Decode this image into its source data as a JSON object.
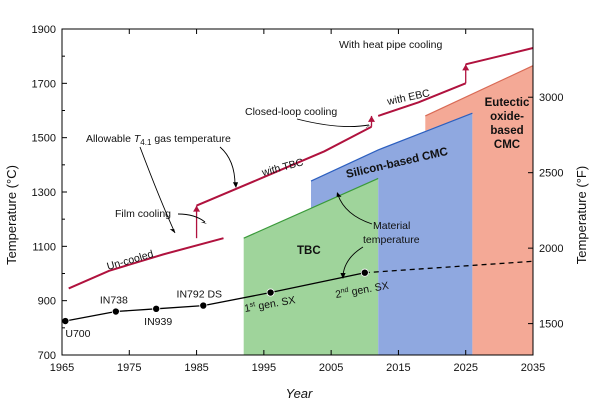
{
  "chart_data": {
    "type": "line",
    "xlabel": "Year",
    "ylabel_left": "Temperature (°C)",
    "ylabel_right": "Temperature (°F)",
    "xlim": [
      1965,
      2035
    ],
    "ylim": [
      700,
      1900
    ],
    "x_ticks": [
      1965,
      1975,
      1985,
      1995,
      2005,
      2015,
      2025,
      2035
    ],
    "y_ticks": [
      700,
      900,
      1100,
      1300,
      1500,
      1700,
      1900
    ],
    "y_right_ticks_F": [
      1500,
      2000,
      2500,
      3000
    ],
    "alloys": [
      {
        "label": "U700",
        "x": 1965.5,
        "y": 825
      },
      {
        "label": "IN738",
        "x": 1973,
        "y": 860
      },
      {
        "label": "IN939",
        "x": 1979,
        "y": 870
      },
      {
        "label": "IN792 DS",
        "x": 1986,
        "y": 882
      },
      {
        "label": "1st gen. SX",
        "x": 1996,
        "y": 930
      },
      {
        "label": "2nd gen. SX",
        "x": 2010,
        "y": 1003
      }
    ],
    "alloy_trend_extension": [
      [
        2010,
        1003
      ],
      [
        2035,
        1045
      ]
    ],
    "gas_temperature_segments": [
      {
        "label": "Un-cooled",
        "points": [
          [
            1966,
            945
          ],
          [
            1972,
            1010
          ],
          [
            1980,
            1070
          ],
          [
            1989,
            1130
          ]
        ]
      },
      {
        "label": "with TBC",
        "points": [
          [
            1985,
            1250
          ],
          [
            1995,
            1355
          ],
          [
            2004,
            1450
          ],
          [
            2011,
            1540
          ]
        ]
      },
      {
        "label": "with EBC",
        "points": [
          [
            2012,
            1580
          ],
          [
            2018,
            1630
          ],
          [
            2025,
            1700
          ]
        ]
      },
      {
        "label": "With heat pipe cooling",
        "points": [
          [
            2025,
            1770
          ],
          [
            2030,
            1800
          ],
          [
            2035,
            1830
          ]
        ]
      }
    ],
    "gas_temperature_jumps": [
      {
        "x": 1985,
        "from": 1130,
        "to": 1250
      },
      {
        "x": 2011,
        "from": 1540,
        "to": 1580
      },
      {
        "x": 2025,
        "from": 1700,
        "to": 1770
      }
    ],
    "material_regions": [
      {
        "label": "TBC",
        "color": "#9fd49b",
        "points": [
          [
            1992,
            1130
          ],
          [
            2012,
            1350
          ],
          [
            2012,
            700
          ],
          [
            1992,
            700
          ]
        ]
      },
      {
        "label": "Silicon-based CMC",
        "color": "#8fa8e0",
        "points": [
          [
            2002,
            1340
          ],
          [
            2012,
            1455
          ],
          [
            2026,
            1590
          ],
          [
            2026,
            700
          ],
          [
            2012,
            700
          ],
          [
            2012,
            1350
          ],
          [
            2002,
            1240
          ]
        ]
      },
      {
        "label": "Eutectic oxide-based CMC",
        "color": "#f4a996",
        "points": [
          [
            2019,
            1580
          ],
          [
            2035,
            1765
          ],
          [
            2035,
            700
          ],
          [
            2026,
            700
          ],
          [
            2026,
            1590
          ],
          [
            2019,
            1525
          ]
        ]
      }
    ],
    "annotations": {
      "allowable_label_pre": "Allowable ",
      "allowable_label_var": "T",
      "allowable_label_sub": "4.1",
      "allowable_label_post": " gas temperature",
      "film_cooling": "Film cooling",
      "closed_loop_cooling": "Closed-loop cooling",
      "with_tbc": "with TBC",
      "with_ebc": "with EBC",
      "with_heat_pipe": "With heat pipe cooling",
      "un_cooled": "Un-cooled",
      "material_temperature_1": "Material",
      "material_temperature_2": "temperature",
      "tbc": "TBC",
      "silicon_cmc": "Silicon-based CMC",
      "eutectic_1": "Eutectic",
      "eutectic_2": "oxide-",
      "eutectic_3": "based",
      "eutectic_4": "CMC",
      "sx1_num": "1",
      "sx1_sup": "st",
      "sx1_rest": " gen. SX",
      "sx2_num": "2",
      "sx2_sup": "nd",
      "sx2_rest": " gen. SX"
    }
  }
}
